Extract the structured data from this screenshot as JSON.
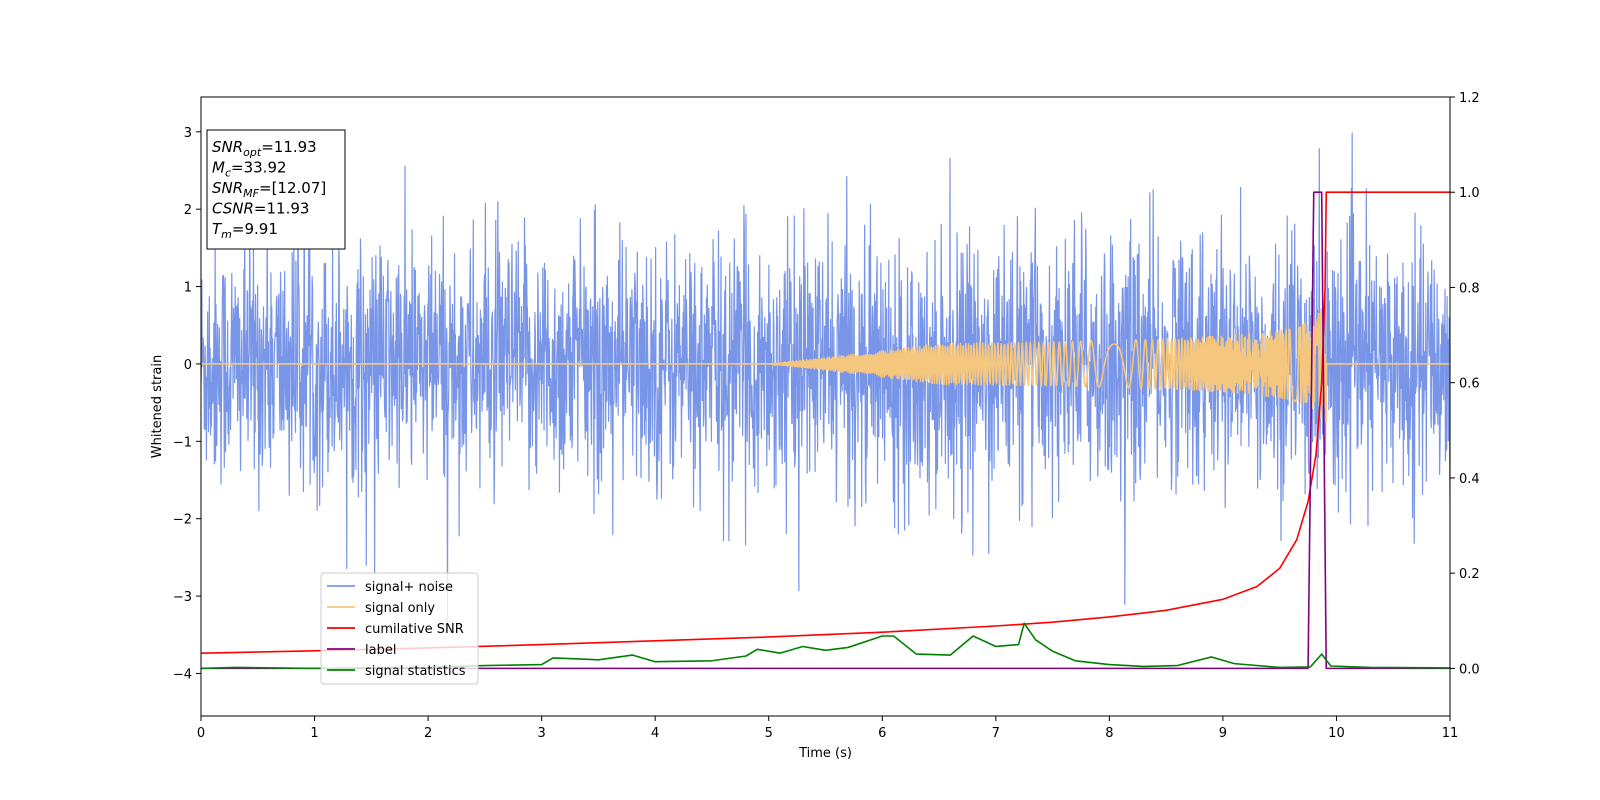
{
  "chart_data": {
    "type": "line",
    "title": "",
    "xlabel": "Time (s)",
    "ylabel": "Whitened strain",
    "xlim": [
      0,
      11
    ],
    "ylim": [
      -4.55,
      3.45
    ],
    "y2lim": [
      -0.1,
      1.2
    ],
    "x_ticks": [
      "0",
      "1",
      "2",
      "3",
      "4",
      "5",
      "6",
      "7",
      "8",
      "9",
      "10",
      "11"
    ],
    "y_ticks": [
      "−4",
      "−3",
      "−2",
      "−1",
      "0",
      "1",
      "2",
      "3"
    ],
    "y2_ticks": [
      "0.0",
      "0.2",
      "0.4",
      "0.6",
      "0.8",
      "1.0",
      "1.2"
    ],
    "grid": false,
    "legend_position": "lower-left",
    "info_box": {
      "lines": [
        {
          "symbol": "SNR",
          "sub": "opt",
          "value": "=11.93"
        },
        {
          "symbol": "M",
          "sub": "c",
          "value": "=33.92"
        },
        {
          "symbol": "SNR",
          "sub": "MF",
          "value": "=[12.07]"
        },
        {
          "symbol": "CSNR",
          "sub": "",
          "value": "=11.93"
        },
        {
          "symbol": "T",
          "sub": "m",
          "value": "=9.91"
        }
      ]
    },
    "series": [
      {
        "name": "signal+ noise",
        "color": "#7895e8",
        "axis": "left",
        "kind": "noise",
        "std": 0.78,
        "range_notable": [
          -4.15,
          3.1
        ]
      },
      {
        "name": "signal only",
        "color": "#f5c77e",
        "axis": "left",
        "kind": "chirp",
        "start": 5.0,
        "merger": 9.91,
        "peak_amplitude": 0.95
      },
      {
        "name": "cumilative SNR",
        "color": "#ff0000",
        "axis": "right",
        "x": [
          0,
          1,
          2,
          3,
          4,
          5,
          6,
          7,
          7.5,
          8,
          8.5,
          9,
          9.3,
          9.5,
          9.65,
          9.75,
          9.82,
          9.87,
          9.9,
          9.91,
          11
        ],
        "y": [
          0.032,
          0.037,
          0.043,
          0.05,
          0.058,
          0.066,
          0.076,
          0.089,
          0.097,
          0.108,
          0.122,
          0.145,
          0.172,
          0.21,
          0.27,
          0.35,
          0.45,
          0.6,
          0.8,
          1.0,
          1.0
        ]
      },
      {
        "name": "label",
        "color": "#800080",
        "axis": "right",
        "x": [
          0,
          9.75,
          9.8,
          9.87,
          9.91,
          11
        ],
        "y": [
          0,
          0,
          1,
          1,
          0,
          0
        ]
      },
      {
        "name": "signal statistics",
        "color": "#008000",
        "axis": "right",
        "x": [
          0,
          0.3,
          1,
          2,
          2.5,
          3,
          3.1,
          3.3,
          3.5,
          3.8,
          4,
          4.5,
          4.8,
          4.9,
          5.1,
          5.3,
          5.5,
          5.7,
          6,
          6.1,
          6.3,
          6.6,
          6.8,
          7,
          7.2,
          7.25,
          7.35,
          7.5,
          7.7,
          8,
          8.3,
          8.6,
          8.9,
          9.1,
          9.5,
          9.77,
          9.87,
          9.95,
          10.3,
          11
        ],
        "y": [
          0.0,
          0.002,
          0.0,
          0.002,
          0.006,
          0.008,
          0.022,
          0.02,
          0.018,
          0.028,
          0.014,
          0.016,
          0.026,
          0.04,
          0.032,
          0.046,
          0.038,
          0.044,
          0.068,
          0.068,
          0.03,
          0.028,
          0.068,
          0.046,
          0.05,
          0.095,
          0.06,
          0.036,
          0.016,
          0.008,
          0.004,
          0.006,
          0.024,
          0.01,
          0.002,
          0.003,
          0.03,
          0.005,
          0.002,
          0.001
        ]
      }
    ]
  }
}
